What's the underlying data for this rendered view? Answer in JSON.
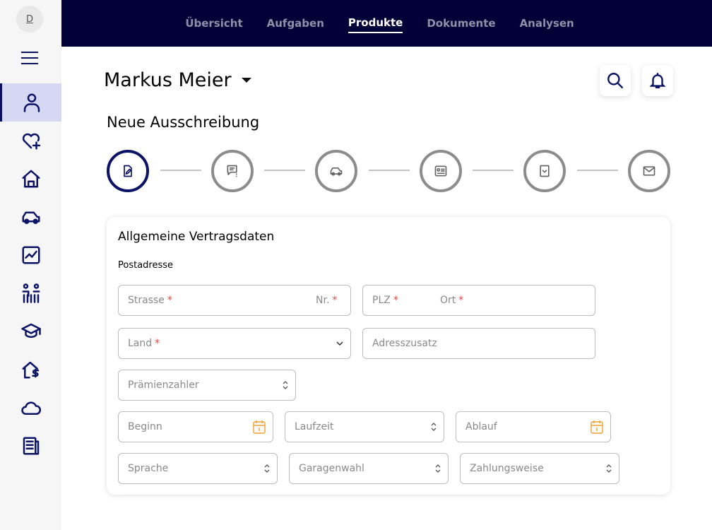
{
  "sidebar": {
    "avatar": "D",
    "items": [
      "user-icon",
      "heart-plus-icon",
      "home-icon",
      "car-icon",
      "chart-icon",
      "family-icon",
      "graduation-cap-icon",
      "house-dollar-icon",
      "cloud-icon",
      "document-icon"
    ],
    "active": 0
  },
  "nav": {
    "items": [
      "Übersicht",
      "Aufgaben",
      "Produkte",
      "Dokumente",
      "Analysen"
    ],
    "active": "Produkte"
  },
  "header": {
    "user": "Markus Meier"
  },
  "page": {
    "title": "Neue Ausschreibung"
  },
  "steps": [
    "edit-document-icon",
    "chat-question-icon",
    "car-icon",
    "id-card-icon",
    "checklist-icon",
    "mail-icon"
  ],
  "form": {
    "title": "Allgemeine Vertragsdaten",
    "section": "Postadresse",
    "fields": {
      "strasse": "Strasse",
      "nr": "Nr.",
      "plz": "PLZ",
      "ort": "Ort",
      "land": "Land",
      "adresszusatz": "Adresszusatz",
      "praemienzahler": "Prämienzahler",
      "beginn": "Beginn",
      "laufzeit": "Laufzeit",
      "ablauf": "Ablauf",
      "sprache": "Sprache",
      "garagenwahl": "Garagenwahl",
      "zahlungsweise": "Zahlungsweise"
    },
    "required_mark": "*"
  },
  "colors": {
    "primary": "#0b1366",
    "topbar": "#010138",
    "required": "#e04848",
    "calendar": "#f0a030"
  }
}
